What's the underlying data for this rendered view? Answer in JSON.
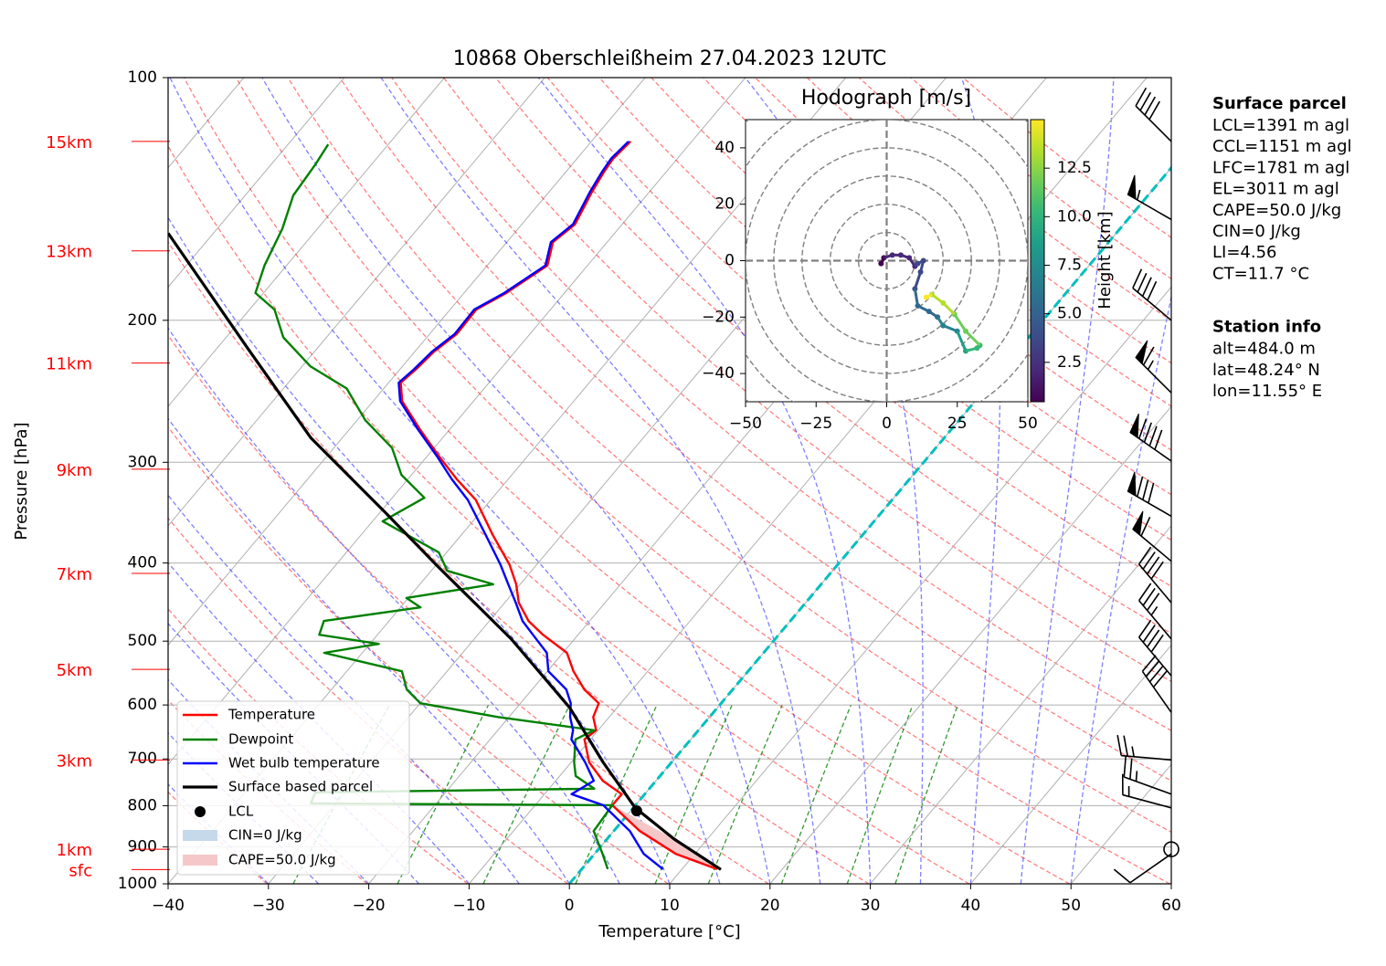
{
  "chart_data": {
    "type": "skewt",
    "title": "10868 Oberschleißheim 27.04.2023 12UTC",
    "xlabel": "Temperature [°C]",
    "ylabel": "Pressure [hPa]",
    "xlim": [
      -40,
      60
    ],
    "ylim": [
      1000,
      100
    ],
    "log_y": true,
    "grid": true,
    "xticks": [
      {
        "value": -40,
        "label": "−40"
      },
      {
        "value": -30,
        "label": "−30"
      },
      {
        "value": -20,
        "label": "−20"
      },
      {
        "value": -10,
        "label": "−10"
      },
      0,
      10,
      20,
      30,
      40,
      50,
      60
    ],
    "yticks": [
      100,
      200,
      300,
      400,
      500,
      600,
      700,
      800,
      900,
      1000
    ],
    "highlight_isotherm": 0,
    "highlight_color": "#00bfbf",
    "legend": "lower left",
    "series": [
      {
        "name": "Temperature",
        "color": "#ff0000",
        "pressure": [
          959,
          918,
          860,
          799,
          774,
          745,
          707,
          662,
          645,
          621,
          597,
          574,
          545,
          517,
          491,
          472,
          448,
          425,
          402,
          369,
          334,
          315,
          295,
          273,
          252,
          239,
          230,
          219,
          208,
          194,
          185,
          171,
          160,
          152,
          144,
          139,
          131,
          126,
          120
        ],
        "values": [
          13.5,
          8.1,
          2.6,
          -2.3,
          -2.3,
          -5.3,
          -8.2,
          -10.6,
          -10.2,
          -11.6,
          -12.2,
          -14.8,
          -17.4,
          -19.6,
          -23.5,
          -26.1,
          -28.6,
          -30.4,
          -32.7,
          -36.9,
          -41.5,
          -45.1,
          -48.8,
          -53.0,
          -57.1,
          -58.8,
          -58.4,
          -58.1,
          -57.3,
          -57.4,
          -55.8,
          -54.0,
          -55.4,
          -54.7,
          -55.3,
          -55.7,
          -56.2,
          -56.4,
          -56.1
        ]
      },
      {
        "name": "Dewpoint",
        "color": "#008000",
        "pressure": [
          959,
          918,
          860,
          799,
          795,
          770,
          762,
          735,
          707,
          662,
          645,
          621,
          597,
          574,
          545,
          517,
          504,
          491,
          472,
          454,
          442,
          425,
          409,
          388,
          355,
          332,
          311,
          288,
          266,
          243,
          228,
          210,
          194,
          185,
          171,
          154,
          140,
          128,
          121
        ],
        "values": [
          2.6,
          0.8,
          -2.0,
          -2.3,
          -32.5,
          -33.0,
          -5.5,
          -8.4,
          -9.7,
          -11.5,
          -10.4,
          -21.1,
          -30.0,
          -32.5,
          -34.5,
          -43.8,
          -39.1,
          -45.8,
          -46.5,
          -38.0,
          -40.2,
          -32.7,
          -38.4,
          -40.8,
          -49.0,
          -46.8,
          -51.0,
          -54.2,
          -59.2,
          -63.7,
          -69.2,
          -74.3,
          -77.5,
          -80.8,
          -82.2,
          -83.5,
          -85.2,
          -85.6,
          -86.0
        ]
      },
      {
        "name": "Wet bulb temperature",
        "color": "#0000ff",
        "pressure": [
          959,
          918,
          860,
          799,
          774,
          745,
          707,
          662,
          645,
          621,
          597,
          574,
          545,
          517,
          491,
          472,
          448,
          425,
          402,
          369,
          334,
          315,
          295,
          273,
          252,
          239,
          230,
          219,
          208,
          194,
          185,
          171,
          160,
          152,
          144,
          139,
          131,
          126,
          120
        ],
        "values": [
          8.1,
          4.9,
          1.6,
          -3.2,
          -7.3,
          -6.2,
          -8.6,
          -11.9,
          -12.5,
          -13.9,
          -15.0,
          -16.6,
          -19.9,
          -21.6,
          -24.5,
          -26.7,
          -28.9,
          -31.2,
          -33.6,
          -37.6,
          -42.3,
          -45.6,
          -49.0,
          -53.2,
          -57.3,
          -59.0,
          -58.6,
          -58.3,
          -57.5,
          -57.6,
          -56.0,
          -54.2,
          -55.6,
          -54.9,
          -55.5,
          -55.9,
          -56.4,
          -56.6,
          -56.3
        ]
      },
      {
        "name": "Surface based parcel",
        "color": "#000000",
        "pressure": [
          960,
          880,
          805,
          707,
          605,
          497,
          404,
          345,
          280,
          216,
          156
        ],
        "values": [
          13.9,
          6.7,
          0.2,
          -6.8,
          -14.7,
          -26.3,
          -39.7,
          -49.7,
          -63.1,
          -77.1,
          -94.5
        ]
      }
    ],
    "lcl": {
      "name": "LCL",
      "pressure": 812,
      "value": 0.6,
      "color": "#000000"
    },
    "areas": [
      {
        "name": "CIN=0 J/kg",
        "color": "#c6d9ea"
      },
      {
        "name": "CAPE=50.0 J/kg",
        "color": "#f5c7c9"
      }
    ],
    "height_labels": [
      {
        "pressure": 120,
        "label": "15km"
      },
      {
        "pressure": 164,
        "label": "13km"
      },
      {
        "pressure": 226,
        "label": "11km"
      },
      {
        "pressure": 306,
        "label": "9km"
      },
      {
        "pressure": 412,
        "label": "7km"
      },
      {
        "pressure": 542,
        "label": "5km"
      },
      {
        "pressure": 702,
        "label": "3km"
      },
      {
        "pressure": 906,
        "label": "1km"
      },
      {
        "pressure": 960,
        "label": "sfc"
      }
    ],
    "height_label_color": "#ff0000",
    "wind_barbs": {
      "pressure": [
        120,
        150,
        200,
        246,
        299,
        350,
        398,
        448,
        497,
        552,
        613,
        702,
        774,
        805,
        906,
        918
      ],
      "speed": [
        40,
        55,
        40,
        65,
        90,
        80,
        60,
        40,
        35,
        40,
        40,
        25,
        25,
        15,
        0,
        10
      ],
      "direction": [
        315,
        300,
        310,
        315,
        305,
        300,
        310,
        320,
        320,
        320,
        325,
        275,
        290,
        285,
        0,
        235
      ]
    },
    "hodograph": {
      "title": "Hodograph [m/s]",
      "xlim": [
        -50,
        50
      ],
      "ylim": [
        -50,
        50
      ],
      "xticks": [
        {
          "value": -50,
          "label": "−50"
        },
        {
          "value": -25,
          "label": "−25"
        },
        0,
        25,
        50
      ],
      "yticks": [
        {
          "value": -40,
          "label": "−40"
        },
        {
          "value": -20,
          "label": "−20"
        },
        0,
        20,
        40
      ],
      "rings": [
        10,
        20,
        30,
        40,
        50,
        60,
        70
      ],
      "u": [
        -2,
        -1,
        2,
        5,
        8,
        10,
        11,
        13,
        12,
        10,
        11,
        15,
        18,
        20,
        25,
        28,
        32,
        33,
        28,
        24,
        20,
        16,
        14
      ],
      "v": [
        -1,
        1,
        2,
        2,
        1,
        -2,
        -1,
        0,
        -4,
        -10,
        -16,
        -18,
        -20,
        -23,
        -25,
        -32,
        -31,
        -30,
        -25,
        -19,
        -15,
        -12,
        -13
      ],
      "height": [
        0.5,
        0.9,
        1.3,
        1.7,
        2.1,
        2.5,
        2.9,
        3.2,
        3.6,
        4.1,
        4.7,
        5.4,
        6.0,
        6.8,
        7.6,
        8.5,
        9.4,
        10.2,
        11.0,
        11.8,
        12.6,
        13.5,
        14.5
      ],
      "colorbar_label": "Height [km]",
      "clim": [
        0.47,
        15
      ],
      "cbar_ticks": [
        2.5,
        {
          "value": 5,
          "label": "5.0"
        },
        7.5,
        {
          "value": 10,
          "label": "10.0"
        },
        12.5
      ]
    }
  },
  "info": {
    "surface_parcel": {
      "title": "Surface parcel",
      "lines": [
        "LCL=1391 m agl",
        "CCL=1151 m agl",
        "LFC=1781 m agl",
        "EL=3011 m agl",
        "CAPE=50.0 J/kg",
        "CIN=0 J/kg",
        "LI=4.56",
        "CT=11.7 °C"
      ]
    },
    "station": {
      "title": "Station info",
      "lines": [
        "alt=484.0 m",
        "lat=48.24° N",
        "lon=11.55° E"
      ]
    }
  }
}
